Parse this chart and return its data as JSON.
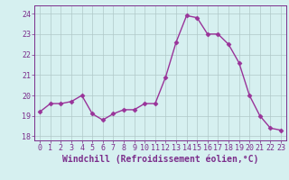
{
  "x": [
    0,
    1,
    2,
    3,
    4,
    5,
    6,
    7,
    8,
    9,
    10,
    11,
    12,
    13,
    14,
    15,
    16,
    17,
    18,
    19,
    20,
    21,
    22,
    23
  ],
  "y": [
    19.2,
    19.6,
    19.6,
    19.7,
    20.0,
    19.1,
    18.8,
    19.1,
    19.3,
    19.3,
    19.6,
    19.6,
    20.9,
    22.6,
    23.9,
    23.8,
    23.0,
    23.0,
    22.5,
    21.6,
    20.0,
    19.0,
    18.4,
    18.3
  ],
  "line_color": "#993399",
  "marker": "D",
  "markersize": 2.5,
  "linewidth": 1.0,
  "bg_color": "#d6f0f0",
  "grid_color": "#b0c8c8",
  "xlabel": "Windchill (Refroidissement éolien,°C)",
  "xlabel_fontsize": 7,
  "xtick_labels": [
    "0",
    "1",
    "2",
    "3",
    "4",
    "5",
    "6",
    "7",
    "8",
    "9",
    "10",
    "11",
    "12",
    "13",
    "14",
    "15",
    "16",
    "17",
    "18",
    "19",
    "20",
    "21",
    "22",
    "23"
  ],
  "ytick_labels": [
    "18",
    "19",
    "20",
    "21",
    "22",
    "23",
    "24"
  ],
  "yticks": [
    18,
    19,
    20,
    21,
    22,
    23,
    24
  ],
  "ylim": [
    17.8,
    24.4
  ],
  "xlim": [
    -0.5,
    23.5
  ],
  "tick_color": "#7b2d8b",
  "tick_fontsize": 6,
  "spine_color": "#7b2d8b"
}
